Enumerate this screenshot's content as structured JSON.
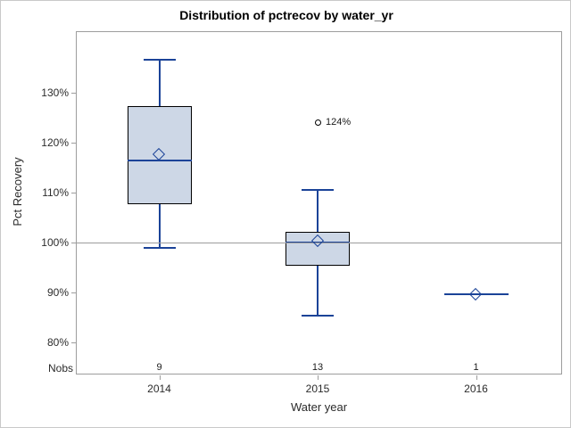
{
  "chart_data": {
    "type": "boxplot",
    "title": "Distribution of pctrecov by water_yr",
    "xlabel": "Water year",
    "ylabel": "Pct Recovery",
    "nobs_label": "Nobs",
    "categories": [
      "2014",
      "2015",
      "2016"
    ],
    "nobs": [
      9,
      13,
      1
    ],
    "y_ticks": [
      {
        "value": 130,
        "label": "130%"
      },
      {
        "value": 120,
        "label": "120%"
      },
      {
        "value": 110,
        "label": "110%"
      },
      {
        "value": 100,
        "label": "100%"
      },
      {
        "value": 90,
        "label": "90%"
      },
      {
        "value": 80,
        "label": "80%"
      }
    ],
    "ylim": [
      74,
      142
    ],
    "refline_value": 100,
    "grid": false,
    "series": [
      {
        "category": "2014",
        "n": 9,
        "whisker_low": 98.8,
        "q1": 107.5,
        "median": 116.3,
        "mean": 117.5,
        "q3": 127.2,
        "whisker_high": 136.5,
        "outliers": []
      },
      {
        "category": "2015",
        "n": 13,
        "whisker_low": 85.3,
        "q1": 95.2,
        "median": 100.0,
        "mean": 100.1,
        "q3": 102.1,
        "whisker_high": 110.4,
        "outliers": [
          {
            "value": 124,
            "label": "124%"
          }
        ]
      },
      {
        "category": "2016",
        "n": 1,
        "whisker_low": 89.5,
        "q1": 89.5,
        "median": 89.5,
        "mean": 89.5,
        "q3": 89.5,
        "whisker_high": 89.5,
        "outliers": []
      }
    ],
    "colors": {
      "box_fill": "#cdd7e6",
      "box_edge": "#000000",
      "line_blue": "#1b4398",
      "refline_gray": "#9d9d9d",
      "frame_gray": "#9d9d9d"
    }
  }
}
